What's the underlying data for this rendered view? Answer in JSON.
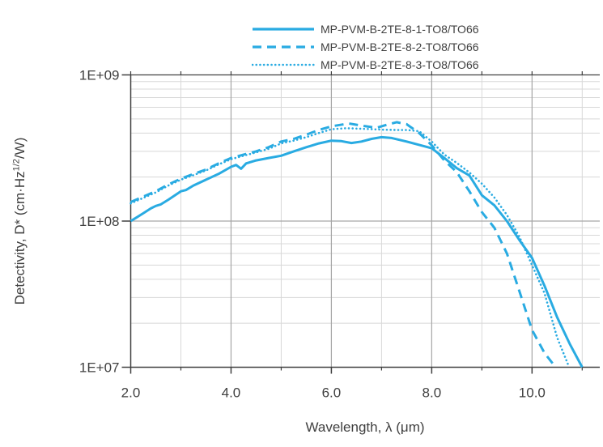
{
  "chart_data": {
    "type": "line",
    "title": "",
    "xlabel": "Wavelength, λ (μm)",
    "ylabel": {
      "prefix": "Detectivity, D* (cm·Hz",
      "sup": "1/2",
      "suffix": "/W)"
    },
    "x_axis": {
      "min": 2.0,
      "max": 11.35,
      "major_ticks": [
        {
          "value": 2.0,
          "label": "2.0"
        },
        {
          "value": 4.0,
          "label": "4.0"
        },
        {
          "value": 6.0,
          "label": "6.0"
        },
        {
          "value": 8.0,
          "label": "8.0"
        },
        {
          "value": 10.0,
          "label": "10.0"
        }
      ],
      "minor_ticks": [
        3,
        5,
        7,
        9,
        11
      ],
      "top_edge_ticks": [
        2,
        3,
        4,
        5,
        6,
        7,
        8,
        9,
        10,
        11
      ]
    },
    "y_axis": {
      "scale": "log",
      "min": 10000000.0,
      "max": 1000000000.0,
      "major_ticks": [
        {
          "value": 1000000000.0,
          "label": "1E+09"
        },
        {
          "value": 100000000.0,
          "label": "1E+08"
        },
        {
          "value": 10000000.0,
          "label": "1E+07"
        }
      ],
      "minor_multipliers": [
        2,
        3,
        4,
        5,
        6,
        7,
        8,
        9
      ]
    },
    "grid": {
      "major": true,
      "minor": true
    },
    "legend_position": "top-center",
    "colors": {
      "line": "#29ABE2",
      "spine": "#404040",
      "major_grid": "#A6A6A6",
      "minor_grid": "#D8D8D8",
      "text": "#404040"
    },
    "series": [
      {
        "name": "MP-PVM-B-2TE-8-1-TO8/TO66",
        "style": "solid",
        "points": [
          [
            2.0,
            100000000.0
          ],
          [
            2.1,
            105000000.0
          ],
          [
            2.25,
            113000000.0
          ],
          [
            2.4,
            122000000.0
          ],
          [
            2.5,
            127000000.0
          ],
          [
            2.6,
            130000000.0
          ],
          [
            2.75,
            140000000.0
          ],
          [
            3.0,
            160000000.0
          ],
          [
            3.1,
            163000000.0
          ],
          [
            3.25,
            175000000.0
          ],
          [
            3.5,
            192000000.0
          ],
          [
            3.75,
            210000000.0
          ],
          [
            4.0,
            235000000.0
          ],
          [
            4.1,
            242000000.0
          ],
          [
            4.2,
            228000000.0
          ],
          [
            4.3,
            248000000.0
          ],
          [
            4.5,
            260000000.0
          ],
          [
            4.75,
            270000000.0
          ],
          [
            5.0,
            280000000.0
          ],
          [
            5.25,
            300000000.0
          ],
          [
            5.5,
            320000000.0
          ],
          [
            5.75,
            340000000.0
          ],
          [
            6.0,
            355000000.0
          ],
          [
            6.2,
            352000000.0
          ],
          [
            6.4,
            342000000.0
          ],
          [
            6.6,
            350000000.0
          ],
          [
            6.8,
            365000000.0
          ],
          [
            7.0,
            375000000.0
          ],
          [
            7.2,
            370000000.0
          ],
          [
            7.5,
            350000000.0
          ],
          [
            7.75,
            332000000.0
          ],
          [
            8.0,
            315000000.0
          ],
          [
            8.25,
            270000000.0
          ],
          [
            8.5,
            230000000.0
          ],
          [
            8.75,
            205000000.0
          ],
          [
            9.0,
            150000000.0
          ],
          [
            9.25,
            128000000.0
          ],
          [
            9.5,
            100000000.0
          ],
          [
            9.75,
            74000000.0
          ],
          [
            10.0,
            56000000.0
          ],
          [
            10.25,
            36000000.0
          ],
          [
            10.5,
            22000000.0
          ],
          [
            10.75,
            14500000.0
          ],
          [
            11.0,
            10000000.0
          ]
        ]
      },
      {
        "name": "MP-PVM-B-2TE-8-2-TO8/TO66",
        "style": "dashed",
        "points": [
          [
            2.0,
            135000000.0
          ],
          [
            2.25,
            147000000.0
          ],
          [
            2.5,
            160000000.0
          ],
          [
            2.75,
            178000000.0
          ],
          [
            3.0,
            195000000.0
          ],
          [
            3.25,
            210000000.0
          ],
          [
            3.5,
            225000000.0
          ],
          [
            3.75,
            248000000.0
          ],
          [
            4.0,
            270000000.0
          ],
          [
            4.25,
            285000000.0
          ],
          [
            4.5,
            300000000.0
          ],
          [
            4.75,
            320000000.0
          ],
          [
            5.0,
            350000000.0
          ],
          [
            5.25,
            365000000.0
          ],
          [
            5.5,
            390000000.0
          ],
          [
            5.75,
            420000000.0
          ],
          [
            6.0,
            445000000.0
          ],
          [
            6.35,
            465000000.0
          ],
          [
            6.6,
            450000000.0
          ],
          [
            6.9,
            435000000.0
          ],
          [
            7.1,
            455000000.0
          ],
          [
            7.3,
            475000000.0
          ],
          [
            7.5,
            460000000.0
          ],
          [
            7.75,
            400000000.0
          ],
          [
            8.0,
            330000000.0
          ],
          [
            8.25,
            260000000.0
          ],
          [
            8.5,
            216000000.0
          ],
          [
            8.75,
            160000000.0
          ],
          [
            9.0,
            115000000.0
          ],
          [
            9.25,
            90000000.0
          ],
          [
            9.5,
            60000000.0
          ],
          [
            9.75,
            33000000.0
          ],
          [
            10.0,
            18000000.0
          ],
          [
            10.25,
            12500000.0
          ],
          [
            10.47,
            10000000.0
          ]
        ]
      },
      {
        "name": "MP-PVM-B-2TE-8-3-TO8/TO66",
        "style": "dotted",
        "points": [
          [
            2.0,
            132000000.0
          ],
          [
            2.25,
            144000000.0
          ],
          [
            2.5,
            157000000.0
          ],
          [
            2.75,
            175000000.0
          ],
          [
            3.0,
            192000000.0
          ],
          [
            3.25,
            206000000.0
          ],
          [
            3.5,
            222000000.0
          ],
          [
            3.75,
            244000000.0
          ],
          [
            4.0,
            265000000.0
          ],
          [
            4.25,
            280000000.0
          ],
          [
            4.5,
            295000000.0
          ],
          [
            4.75,
            312000000.0
          ],
          [
            5.0,
            340000000.0
          ],
          [
            5.25,
            355000000.0
          ],
          [
            5.5,
            375000000.0
          ],
          [
            5.75,
            400000000.0
          ],
          [
            6.0,
            425000000.0
          ],
          [
            6.3,
            432000000.0
          ],
          [
            6.6,
            428000000.0
          ],
          [
            7.0,
            422000000.0
          ],
          [
            7.3,
            420000000.0
          ],
          [
            7.5,
            420000000.0
          ],
          [
            7.75,
            412000000.0
          ],
          [
            8.0,
            350000000.0
          ],
          [
            8.25,
            285000000.0
          ],
          [
            8.5,
            250000000.0
          ],
          [
            8.75,
            215000000.0
          ],
          [
            9.0,
            180000000.0
          ],
          [
            9.25,
            145000000.0
          ],
          [
            9.5,
            110000000.0
          ],
          [
            9.75,
            78000000.0
          ],
          [
            10.0,
            50000000.0
          ],
          [
            10.25,
            32000000.0
          ],
          [
            10.5,
            16000000.0
          ],
          [
            10.74,
            10000000.0
          ]
        ]
      }
    ]
  }
}
